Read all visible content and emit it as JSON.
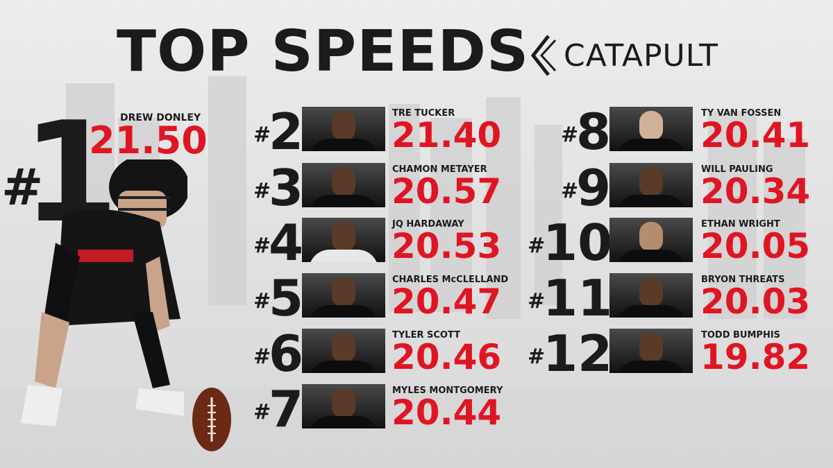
{
  "title": "TOP SPEEDS",
  "brand": "CATAPULT",
  "top": {
    "rank": "1",
    "name": "DREW DONLEY",
    "speed": "21.50"
  },
  "list_left": [
    {
      "rank": "2",
      "name": "TRE TUCKER",
      "speed": "21.40"
    },
    {
      "rank": "3",
      "name": "CHAMON METAYER",
      "speed": "20.57"
    },
    {
      "rank": "4",
      "name": "JQ HARDAWAY",
      "speed": "20.53"
    },
    {
      "rank": "5",
      "name": "CHARLES McCLELLAND",
      "speed": "20.47"
    },
    {
      "rank": "6",
      "name": "TYLER SCOTT",
      "speed": "20.46"
    },
    {
      "rank": "7",
      "name": "MYLES MONTGOMERY",
      "speed": "20.44"
    }
  ],
  "list_right": [
    {
      "rank": "8",
      "name": "TY VAN FOSSEN",
      "speed": "20.41"
    },
    {
      "rank": "9",
      "name": "WILL PAULING",
      "speed": "20.34"
    },
    {
      "rank": "10",
      "name": "ETHAN WRIGHT",
      "speed": "20.05"
    },
    {
      "rank": "11",
      "name": "BRYON THREATS",
      "speed": "20.03"
    },
    {
      "rank": "12",
      "name": "TODD BUMPHIS",
      "speed": "19.82"
    }
  ],
  "colors": {
    "accent": "#e01523",
    "text": "#1b1b1b",
    "background": "#e4e4e4"
  }
}
